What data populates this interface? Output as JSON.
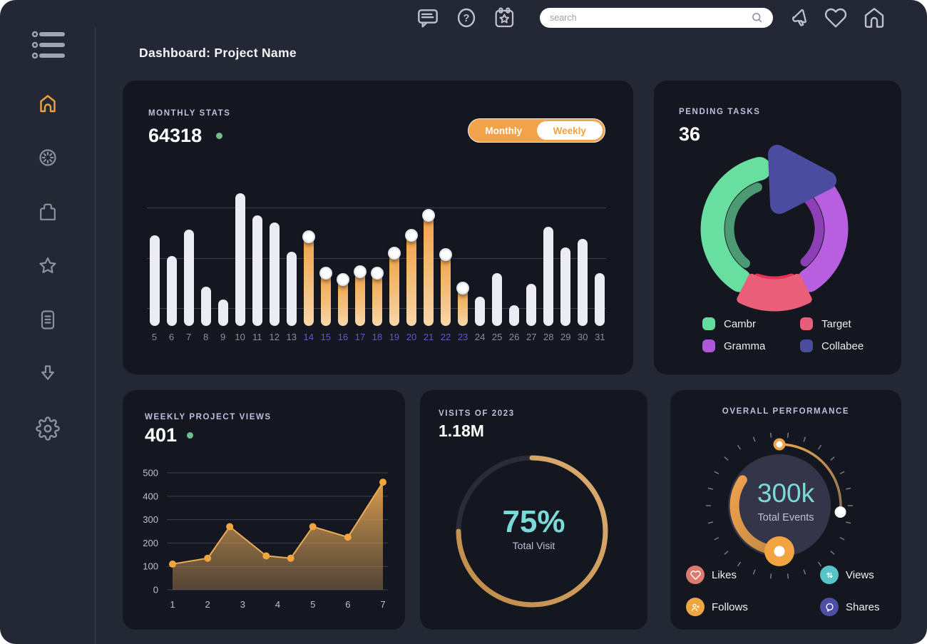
{
  "app": {
    "title": "Dashboard: Project Name"
  },
  "topbar": {
    "search_placeholder": "search"
  },
  "colors": {
    "accent_orange": "#F0A23C",
    "teal": "#7CD9D9",
    "green_dot": "#6FBF8E",
    "card_bg": "#14171F",
    "app_bg": "#242734",
    "highlight_label": "#6456C8"
  },
  "cards": {
    "monthly_stats": {
      "label": "MONTHLY STATS",
      "value": "64318",
      "toggle": {
        "options": [
          "Monthly",
          "Weekly"
        ],
        "selected": "Monthly"
      },
      "chart_data": {
        "type": "bar",
        "categories": [
          5,
          6,
          7,
          8,
          9,
          10,
          11,
          12,
          13,
          14,
          15,
          16,
          17,
          18,
          19,
          20,
          21,
          22,
          23,
          24,
          25,
          26,
          27,
          28,
          29,
          30,
          31
        ],
        "values": [
          65,
          50,
          69,
          28,
          19,
          95,
          79,
          74,
          53,
          64,
          38,
          33,
          39,
          38,
          52,
          65,
          79,
          51,
          27,
          21,
          38,
          15,
          30,
          71,
          56,
          62,
          38
        ],
        "highlighted_categories": [
          14,
          15,
          16,
          17,
          18,
          19,
          20,
          21,
          22,
          23
        ],
        "ylim": [
          0,
          100
        ],
        "grid_values": [
          12,
          48,
          84
        ],
        "bar_color": "#ECEDF4",
        "highlight_color": "#F2A34A"
      }
    },
    "pending_tasks": {
      "label": "PENDING TASKS",
      "value": "36",
      "chart_data": {
        "type": "pie",
        "segments": [
          {
            "name": "Cambr",
            "color": "#68DFA0",
            "start_deg": 104,
            "end_deg": 236,
            "style": "arc"
          },
          {
            "name": "Gramma",
            "color": "#B75FDF",
            "start_deg": -56,
            "end_deg": 51,
            "style": "arc"
          },
          {
            "name": "Target",
            "color": "#EA5E79",
            "start_deg": 243,
            "end_deg": 297,
            "style": "pulled-wedge"
          },
          {
            "name": "Collabee",
            "color": "#4B4C9F",
            "start_deg": 51,
            "end_deg": 104,
            "style": "pulled-triangle"
          }
        ]
      },
      "legend": [
        {
          "name": "Cambr",
          "color": "#63DD9E"
        },
        {
          "name": "Target",
          "color": "#E85D78"
        },
        {
          "name": "Gramma",
          "color": "#AE58D8"
        },
        {
          "name": "Collabee",
          "color": "#4A4D9B"
        }
      ]
    },
    "weekly_views": {
      "label": "WEEKLY PROJECT VIEWS",
      "value": "401",
      "chart_data": {
        "type": "area",
        "x": [
          1,
          2,
          2.63,
          3.67,
          4.37,
          5,
          6,
          7
        ],
        "y": [
          110,
          135,
          270,
          145,
          135,
          270,
          225,
          460
        ],
        "xticks": [
          1,
          2,
          3,
          4,
          5,
          6,
          7
        ],
        "yticks": [
          0,
          100,
          200,
          300,
          400,
          500
        ],
        "ylim": [
          0,
          500
        ],
        "line_color": "#ECAC55",
        "dot_color": "#F2A43D"
      }
    },
    "visits": {
      "label": "VISITS OF 2023",
      "value": "1.18M",
      "chart_data": {
        "type": "progress-ring",
        "percent": 75,
        "center_label": "75%",
        "caption": "Total Visit"
      }
    },
    "performance": {
      "label": "OVERALL PERFORMANCE",
      "chart_data": {
        "type": "gauge",
        "center_value": "300k",
        "caption": "Total Events",
        "thin_arc": {
          "start_deg": 90,
          "end_deg": -6
        },
        "thick_arc": {
          "start_deg": 145,
          "end_deg": 270
        }
      },
      "legend": [
        {
          "name": "Likes",
          "color": "#DD7A70",
          "icon": "heart-icon"
        },
        {
          "name": "Views",
          "color": "#56C4C8",
          "icon": "arrows-up-down-icon"
        },
        {
          "name": "Follows",
          "color": "#ECA644",
          "icon": "user-plus-icon"
        },
        {
          "name": "Shares",
          "color": "#4C4FA3",
          "icon": "chat-bubble-icon"
        }
      ]
    }
  }
}
